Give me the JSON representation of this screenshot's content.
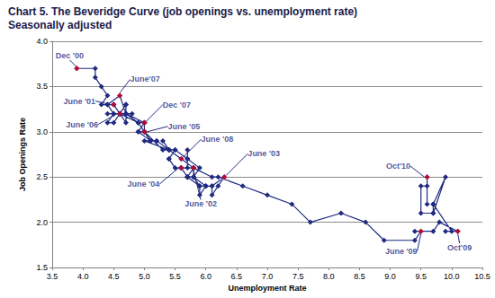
{
  "chart_data": {
    "type": "line",
    "title": "Chart 5. The Beveridge Curve (job openings vs. unemployment rate)",
    "subtitle": "Seasonally adjusted",
    "x_label": "Unemployment Rate",
    "y_label": "Job Openings Rate",
    "color": "#1f2a80",
    "marker": "diamond",
    "line_style": "solid",
    "grid": "y",
    "x": [
      3.9,
      4.2,
      4.2,
      4.3,
      4.4,
      4.3,
      4.5,
      4.6,
      4.9,
      5.0,
      5.3,
      5.5,
      5.7,
      5.7,
      5.7,
      5.7,
      5.9,
      5.8,
      5.8,
      5.8,
      5.7,
      5.7,
      5.7,
      5.9,
      6.0,
      5.8,
      5.9,
      5.9,
      6.0,
      6.1,
      6.3,
      6.2,
      6.1,
      6.1,
      6.0,
      5.8,
      5.7,
      5.7,
      5.6,
      5.8,
      5.6,
      5.6,
      5.6,
      5.5,
      5.4,
      5.4,
      5.5,
      5.4,
      5.4,
      5.3,
      5.4,
      5.2,
      5.2,
      5.1,
      5.0,
      5.0,
      4.9,
      5.0,
      5.0,
      5.0,
      4.9,
      4.7,
      4.8,
      4.7,
      4.7,
      4.6,
      4.6,
      4.7,
      4.7,
      4.5,
      4.4,
      4.5,
      4.4,
      4.6,
      4.5,
      4.4,
      4.5,
      4.4,
      4.6,
      4.7,
      4.6,
      4.7,
      4.7,
      4.7,
      5.0,
      5.0,
      4.9,
      5.1,
      5.0,
      5.4,
      5.6,
      5.8,
      6.1,
      6.2,
      6.6,
      7.0,
      7.4,
      7.7,
      8.2,
      8.6,
      8.9,
      9.4,
      9.5,
      9.4,
      9.7,
      9.8,
      10.1,
      9.9,
      10.0,
      9.7,
      9.7,
      9.7,
      9.9,
      9.7,
      9.5,
      9.5,
      9.6,
      9.6,
      9.6
    ],
    "values": [
      3.7,
      3.7,
      3.6,
      3.5,
      3.4,
      3.3,
      3.3,
      3.2,
      3.1,
      3.0,
      2.8,
      2.8,
      2.7,
      2.8,
      2.6,
      2.7,
      2.6,
      2.5,
      2.6,
      2.6,
      2.5,
      2.5,
      2.5,
      2.4,
      2.4,
      2.5,
      2.4,
      2.3,
      2.4,
      2.4,
      2.5,
      2.4,
      2.3,
      2.4,
      2.4,
      2.5,
      2.5,
      2.5,
      2.6,
      2.6,
      2.6,
      2.6,
      2.6,
      2.6,
      2.7,
      2.7,
      2.8,
      2.8,
      2.8,
      2.9,
      2.8,
      2.9,
      2.9,
      2.9,
      3.0,
      3.0,
      3.0,
      3.1,
      3.0,
      3.1,
      3.1,
      3.2,
      3.2,
      3.2,
      3.1,
      3.2,
      3.2,
      3.2,
      3.3,
      3.1,
      3.1,
      3.2,
      3.2,
      3.2,
      3.3,
      3.3,
      3.2,
      3.3,
      3.4,
      3.2,
      3.2,
      3.2,
      3.3,
      3.2,
      3.1,
      3.1,
      3.0,
      2.9,
      2.9,
      2.8,
      2.7,
      2.6,
      2.5,
      2.5,
      2.4,
      2.3,
      2.2,
      2.0,
      2.1,
      2.0,
      1.8,
      1.8,
      1.9,
      1.9,
      1.9,
      2.0,
      1.9,
      1.9,
      1.9,
      2.2,
      2.1,
      2.2,
      2.5,
      2.1,
      2.1,
      2.4,
      2.4,
      2.2,
      2.5
    ],
    "annotations": [
      {
        "text": "Dec '00",
        "x": 3.9,
        "y": 3.7
      },
      {
        "text": "June '01",
        "x": 4.5,
        "y": 3.3
      },
      {
        "text": "June '06",
        "x": 4.6,
        "y": 3.2
      },
      {
        "text": "June'07",
        "x": 4.6,
        "y": 3.4
      },
      {
        "text": "Dec '07",
        "x": 5.0,
        "y": 3.1
      },
      {
        "text": "June '05",
        "x": 5.0,
        "y": 3.0
      },
      {
        "text": "June '08",
        "x": 5.6,
        "y": 2.7
      },
      {
        "text": "June '03",
        "x": 6.3,
        "y": 2.5
      },
      {
        "text": "June '04",
        "x": 5.6,
        "y": 2.6
      },
      {
        "text": "June '02",
        "x": 5.8,
        "y": 2.6
      },
      {
        "text": "Oct'10",
        "x": 9.6,
        "y": 2.5
      },
      {
        "text": "June '09",
        "x": 9.5,
        "y": 1.9
      },
      {
        "text": "Oct'09",
        "x": 10.1,
        "y": 1.9
      }
    ],
    "annotation_color": "#e3001b",
    "xlim": [
      3.5,
      10.5
    ],
    "xticks": [
      3.5,
      {
        "value": 4,
        "label": "4.0"
      },
      4.5,
      {
        "value": 5,
        "label": "5.0"
      },
      5.5,
      {
        "value": 6,
        "label": "6.0"
      },
      6.5,
      {
        "value": 7,
        "label": "7.0"
      },
      7.5,
      {
        "value": 8,
        "label": "8.0"
      },
      8.5,
      {
        "value": 9,
        "label": "9.0"
      },
      9.5,
      {
        "value": 10,
        "label": "10.0"
      },
      10.5
    ],
    "ylim": [
      1.5,
      4.0
    ],
    "yticks": [
      1.5,
      {
        "value": 2,
        "label": "2.0"
      },
      2.5,
      {
        "value": 3,
        "label": "3.0"
      },
      3.5,
      {
        "value": 4,
        "label": "4.0"
      }
    ]
  }
}
